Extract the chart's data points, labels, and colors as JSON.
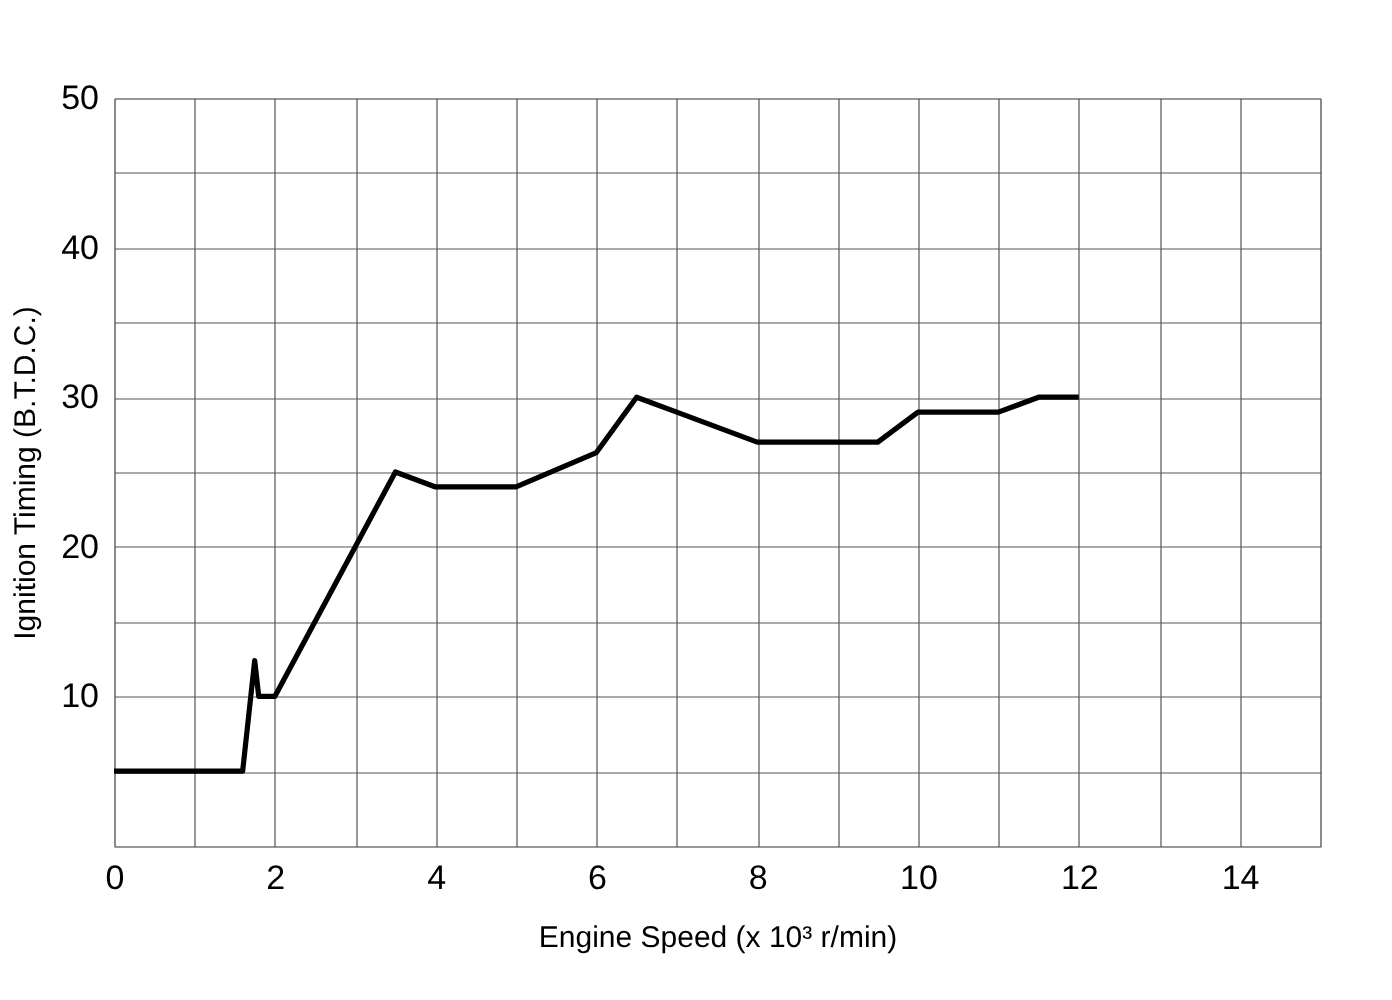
{
  "chart_data": {
    "type": "line",
    "xlabel": "Engine Speed (x 10³ r/min)",
    "ylabel": "Ignition Timing (B.T.D.C.)",
    "x": [
      0,
      1.6,
      1.75,
      1.8,
      2,
      3.5,
      4,
      5,
      6,
      6.5,
      7,
      8,
      9,
      9.5,
      10,
      11,
      11.5,
      12
    ],
    "series": [
      {
        "color": "#000000",
        "values": [
          5,
          5,
          12.4,
          10,
          10,
          25,
          24,
          24,
          26.3,
          30,
          29,
          27,
          27,
          27,
          29,
          29,
          30,
          30
        ]
      }
    ],
    "xlim": [
      0,
      15
    ],
    "ylim": [
      0,
      50
    ],
    "xticks": [
      0,
      {
        "value": 1,
        "label": null
      },
      2,
      {
        "value": 3,
        "label": null
      },
      4,
      {
        "value": 5,
        "label": null
      },
      6,
      {
        "value": 7,
        "label": null
      },
      8,
      {
        "value": 9,
        "label": null
      },
      10,
      {
        "value": 11,
        "label": null
      },
      12,
      {
        "value": 13,
        "label": null
      },
      14,
      {
        "value": 15,
        "label": null
      }
    ],
    "yticks": [
      {
        "value": 0,
        "label": null
      },
      {
        "value": 5,
        "label": null
      },
      10,
      {
        "value": 15,
        "label": null
      },
      20,
      {
        "value": 25,
        "label": null
      },
      30,
      {
        "value": 35,
        "label": null
      },
      40,
      {
        "value": 45,
        "label": null
      },
      50
    ],
    "grid": true,
    "marker": "none",
    "line_style": "solid"
  }
}
